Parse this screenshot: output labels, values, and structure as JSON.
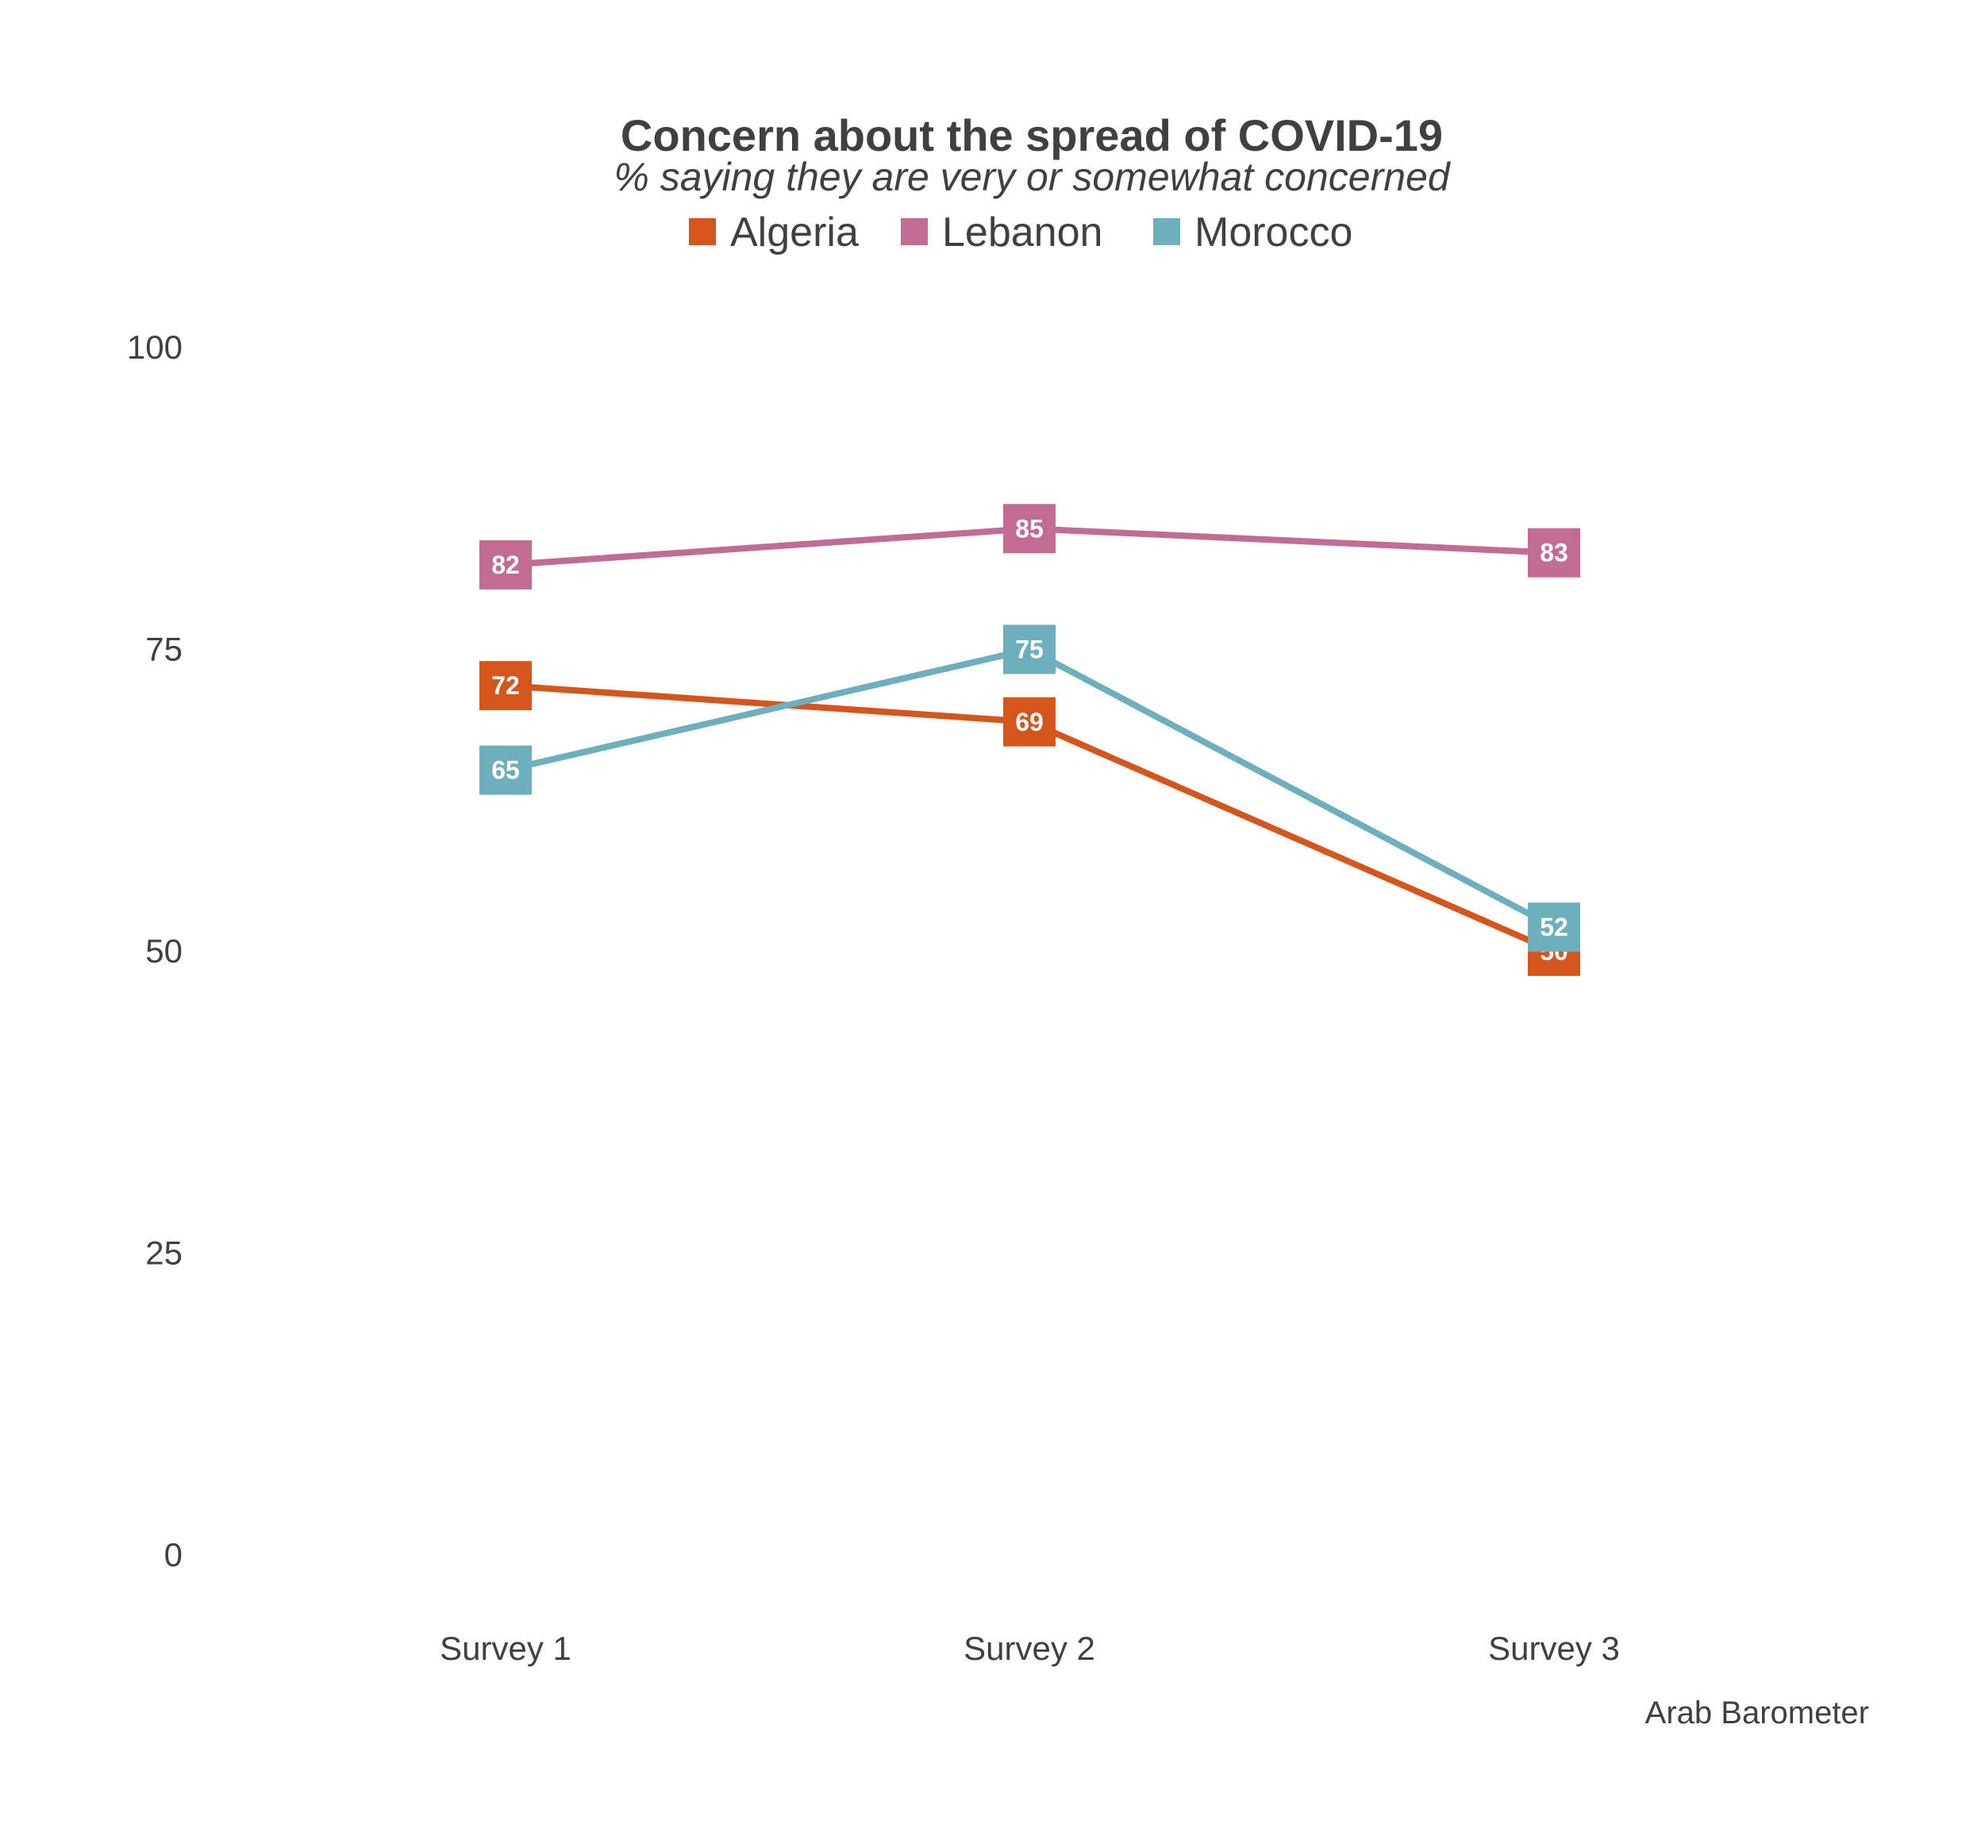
{
  "chart_data": {
    "type": "line",
    "title": "Concern about the spread of COVID-19",
    "subtitle": "% saying they are very or somewhat concerned",
    "caption": "Arab Barometer",
    "xlabel": "",
    "ylabel": "",
    "categories": [
      "Survey 1",
      "Survey 2",
      "Survey 3"
    ],
    "ylim": [
      0,
      100
    ],
    "yticks": [
      0,
      25,
      50,
      75,
      100
    ],
    "grid": false,
    "legend_position": "top",
    "series": [
      {
        "name": "Algeria",
        "color": "#D4561C",
        "values": [
          72,
          69,
          50
        ]
      },
      {
        "name": "Lebanon",
        "color": "#C26B93",
        "values": [
          82,
          85,
          83
        ]
      },
      {
        "name": "Morocco",
        "color": "#6DAFBC",
        "values": [
          65,
          75,
          52
        ]
      }
    ]
  }
}
